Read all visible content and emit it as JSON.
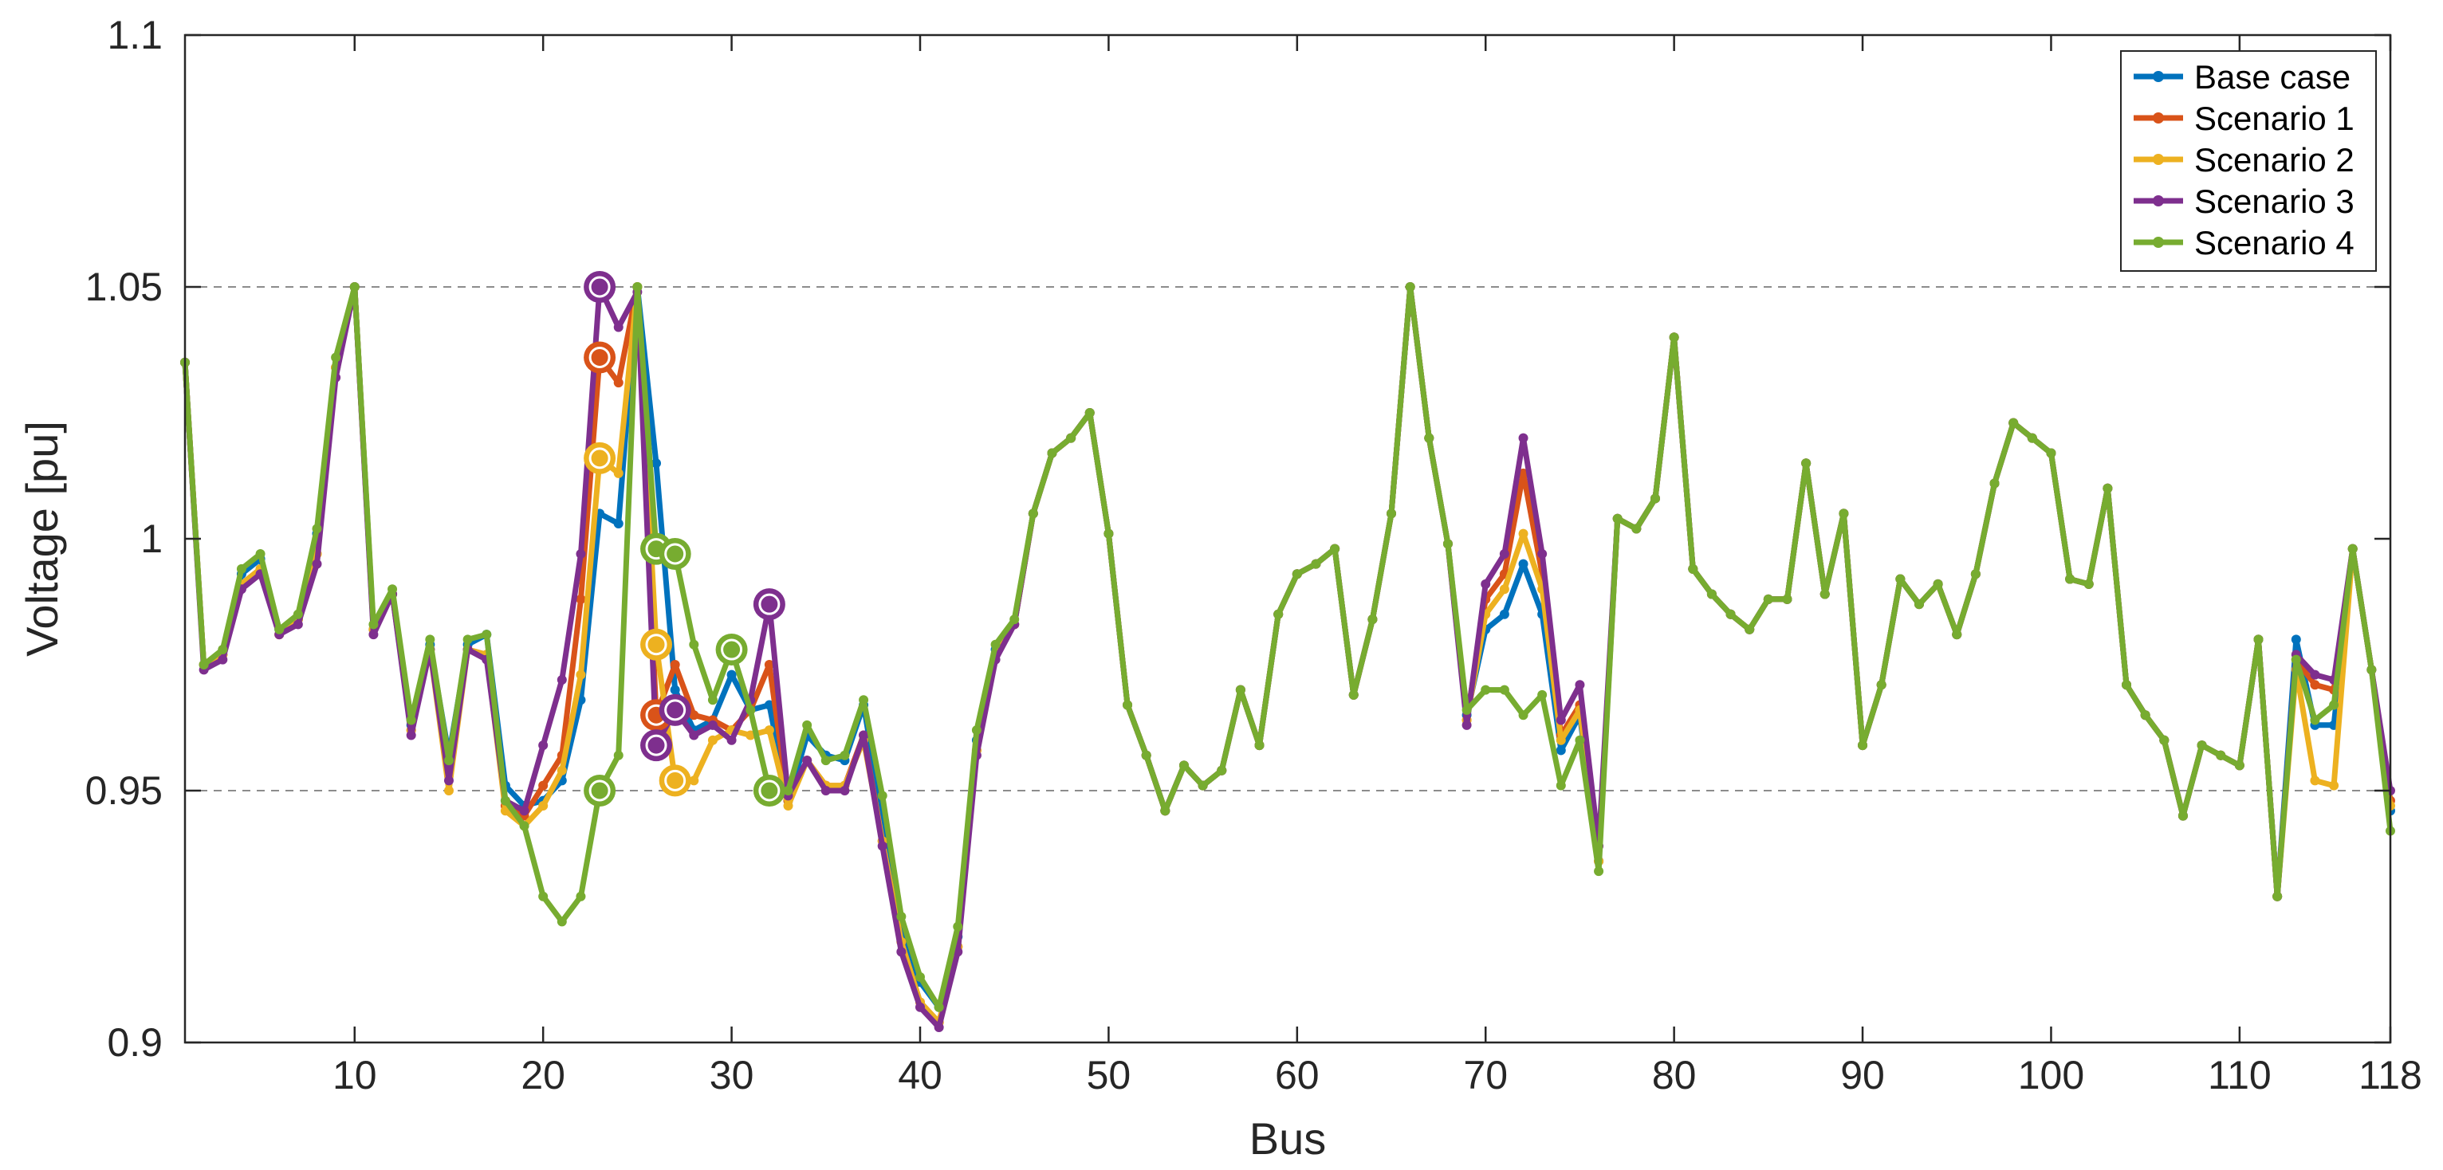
{
  "chart_data": {
    "type": "line",
    "xlabel": "Bus",
    "ylabel": "Voltage [pu]",
    "xlim": [
      1,
      118
    ],
    "ylim": [
      0.9,
      1.1
    ],
    "xticks": [
      10,
      20,
      30,
      40,
      50,
      60,
      70,
      80,
      90,
      100,
      110,
      118
    ],
    "yticks": [
      0.9,
      0.95,
      1,
      1.05,
      1.1
    ],
    "ytick_labels": [
      "0.9",
      "0.95",
      "1",
      "1.05",
      "1.1"
    ],
    "grid": {
      "y_dashed_at": [
        0.95,
        1.05
      ]
    },
    "legend_position": "top-right",
    "x": [
      1,
      2,
      3,
      4,
      5,
      6,
      7,
      8,
      9,
      10,
      11,
      12,
      13,
      14,
      15,
      16,
      17,
      18,
      19,
      20,
      21,
      22,
      23,
      24,
      25,
      26,
      27,
      28,
      29,
      30,
      31,
      32,
      33,
      34,
      35,
      36,
      37,
      38,
      39,
      40,
      41,
      42,
      43,
      44,
      45,
      46,
      47,
      48,
      49,
      50,
      51,
      52,
      53,
      54,
      55,
      56,
      57,
      58,
      59,
      60,
      61,
      62,
      63,
      64,
      65,
      66,
      67,
      68,
      69,
      70,
      71,
      72,
      73,
      74,
      75,
      76,
      77,
      78,
      79,
      80,
      81,
      82,
      83,
      84,
      85,
      86,
      87,
      88,
      89,
      90,
      91,
      92,
      93,
      94,
      95,
      96,
      97,
      98,
      99,
      100,
      101,
      102,
      103,
      104,
      105,
      106,
      107,
      108,
      109,
      110,
      111,
      112,
      113,
      114,
      115,
      116,
      117,
      118
    ],
    "series": [
      {
        "name": "Base case",
        "color": "#0072BD",
        "values": [
          1.035,
          0.975,
          0.977,
          0.993,
          0.996,
          0.982,
          0.984,
          1.001,
          1.034,
          1.05,
          0.982,
          0.989,
          0.963,
          0.979,
          0.957,
          0.979,
          0.981,
          0.951,
          0.947,
          0.948,
          0.952,
          0.968,
          1.005,
          1.003,
          1.05,
          1.015,
          0.97,
          0.962,
          0.964,
          0.973,
          0.966,
          0.967,
          0.948,
          0.961,
          0.957,
          0.956,
          0.967,
          0.945,
          0.922,
          0.912,
          0.907,
          0.921,
          0.96,
          0.978,
          0.983,
          1.005,
          1.017,
          1.02,
          1.025,
          1.001,
          0.967,
          0.957,
          0.946,
          0.955,
          0.951,
          0.954,
          0.97,
          0.959,
          0.985,
          0.993,
          0.995,
          0.998,
          0.969,
          0.984,
          1.005,
          1.05,
          1.02,
          0.999,
          0.965,
          0.982,
          0.985,
          0.995,
          0.985,
          0.958,
          0.965,
          0.936,
          1.004,
          1.002,
          1.008,
          1.04,
          0.994,
          0.989,
          0.985,
          0.982,
          0.988,
          0.988,
          1.015,
          0.989,
          1.005,
          0.959,
          0.971,
          0.992,
          0.987,
          0.991,
          0.981,
          0.993,
          1.011,
          1.023,
          1.02,
          1.017,
          0.992,
          0.991,
          1.01,
          0.971,
          0.965,
          0.96,
          0.945,
          0.959,
          0.957,
          0.955,
          0.98,
          0.929,
          0.98,
          0.963,
          0.963,
          0.998,
          0.974,
          0.946
        ]
      },
      {
        "name": "Scenario 1",
        "color": "#D95319",
        "values": [
          1.035,
          0.975,
          0.977,
          0.991,
          0.994,
          0.981,
          0.984,
          0.997,
          1.034,
          1.05,
          0.982,
          0.989,
          0.962,
          0.978,
          0.953,
          0.978,
          0.977,
          0.947,
          0.945,
          0.951,
          0.957,
          0.988,
          1.036,
          1.031,
          1.05,
          0.965,
          0.975,
          0.965,
          0.964,
          0.962,
          0.966,
          0.975,
          0.948,
          0.956,
          0.951,
          0.951,
          0.961,
          0.94,
          0.92,
          0.908,
          0.904,
          0.919,
          0.958,
          0.977,
          0.983,
          1.005,
          1.017,
          1.02,
          1.025,
          1.001,
          0.967,
          0.957,
          0.946,
          0.955,
          0.951,
          0.954,
          0.97,
          0.959,
          0.985,
          0.993,
          0.995,
          0.998,
          0.969,
          0.984,
          1.005,
          1.05,
          1.02,
          0.999,
          0.964,
          0.988,
          0.993,
          1.013,
          0.993,
          0.961,
          0.967,
          0.936,
          1.004,
          1.002,
          1.008,
          1.04,
          0.994,
          0.989,
          0.985,
          0.982,
          0.988,
          0.988,
          1.015,
          0.989,
          1.005,
          0.959,
          0.971,
          0.992,
          0.987,
          0.991,
          0.981,
          0.993,
          1.011,
          1.023,
          1.02,
          1.017,
          0.992,
          0.991,
          1.01,
          0.971,
          0.965,
          0.96,
          0.945,
          0.959,
          0.957,
          0.955,
          0.98,
          0.929,
          0.976,
          0.971,
          0.97,
          0.998,
          0.974,
          0.948
        ]
      },
      {
        "name": "Scenario 2",
        "color": "#EDB120",
        "values": [
          1.035,
          0.975,
          0.977,
          0.991,
          0.994,
          0.981,
          0.984,
          0.997,
          1.034,
          1.05,
          0.982,
          0.989,
          0.962,
          0.978,
          0.95,
          0.978,
          0.977,
          0.946,
          0.943,
          0.947,
          0.954,
          0.973,
          1.016,
          1.013,
          1.05,
          0.979,
          0.952,
          0.952,
          0.96,
          0.962,
          0.961,
          0.962,
          0.947,
          0.956,
          0.951,
          0.951,
          0.96,
          0.94,
          0.92,
          0.908,
          0.904,
          0.919,
          0.958,
          0.977,
          0.983,
          1.005,
          1.017,
          1.02,
          1.025,
          1.001,
          0.967,
          0.957,
          0.946,
          0.955,
          0.951,
          0.954,
          0.97,
          0.959,
          0.985,
          0.993,
          0.995,
          0.998,
          0.969,
          0.984,
          1.005,
          1.05,
          1.02,
          0.999,
          0.964,
          0.985,
          0.99,
          1.001,
          0.99,
          0.96,
          0.966,
          0.936,
          1.004,
          1.002,
          1.008,
          1.04,
          0.994,
          0.989,
          0.985,
          0.982,
          0.988,
          0.988,
          1.015,
          0.989,
          1.005,
          0.959,
          0.971,
          0.992,
          0.987,
          0.991,
          0.981,
          0.993,
          1.011,
          1.023,
          1.02,
          1.017,
          0.992,
          0.991,
          1.01,
          0.971,
          0.965,
          0.96,
          0.945,
          0.959,
          0.957,
          0.955,
          0.98,
          0.929,
          0.974,
          0.952,
          0.951,
          0.998,
          0.974,
          0.947
        ]
      },
      {
        "name": "Scenario 3",
        "color": "#7E2F8E",
        "values": [
          1.035,
          0.974,
          0.976,
          0.99,
          0.993,
          0.981,
          0.983,
          0.995,
          1.032,
          1.05,
          0.981,
          0.989,
          0.961,
          0.978,
          0.952,
          0.978,
          0.976,
          0.948,
          0.946,
          0.959,
          0.972,
          0.997,
          1.05,
          1.042,
          1.049,
          0.959,
          0.966,
          0.961,
          0.963,
          0.96,
          0.968,
          0.987,
          0.949,
          0.956,
          0.95,
          0.95,
          0.961,
          0.939,
          0.918,
          0.907,
          0.903,
          0.918,
          0.957,
          0.976,
          0.983,
          1.005,
          1.017,
          1.02,
          1.025,
          1.001,
          0.967,
          0.957,
          0.946,
          0.955,
          0.951,
          0.954,
          0.97,
          0.959,
          0.985,
          0.993,
          0.995,
          0.998,
          0.969,
          0.984,
          1.005,
          1.05,
          1.02,
          0.999,
          0.963,
          0.991,
          0.997,
          1.02,
          0.997,
          0.964,
          0.971,
          0.939,
          1.004,
          1.002,
          1.008,
          1.04,
          0.994,
          0.989,
          0.985,
          0.982,
          0.988,
          0.988,
          1.015,
          0.989,
          1.005,
          0.959,
          0.971,
          0.992,
          0.987,
          0.991,
          0.981,
          0.993,
          1.011,
          1.023,
          1.02,
          1.017,
          0.992,
          0.991,
          1.01,
          0.971,
          0.965,
          0.96,
          0.945,
          0.959,
          0.957,
          0.955,
          0.98,
          0.929,
          0.977,
          0.973,
          0.972,
          0.998,
          0.974,
          0.95
        ]
      },
      {
        "name": "Scenario 4",
        "color": "#77AC30",
        "values": [
          1.035,
          0.975,
          0.978,
          0.994,
          0.997,
          0.982,
          0.985,
          1.002,
          1.036,
          1.05,
          0.983,
          0.99,
          0.964,
          0.98,
          0.956,
          0.98,
          0.981,
          0.948,
          0.943,
          0.929,
          0.924,
          0.929,
          0.95,
          0.957,
          1.05,
          0.998,
          0.997,
          0.979,
          0.968,
          0.978,
          0.966,
          0.95,
          0.95,
          0.963,
          0.956,
          0.957,
          0.968,
          0.949,
          0.925,
          0.913,
          0.907,
          0.923,
          0.962,
          0.979,
          0.984,
          1.005,
          1.017,
          1.02,
          1.025,
          1.001,
          0.967,
          0.957,
          0.946,
          0.955,
          0.951,
          0.954,
          0.97,
          0.959,
          0.985,
          0.993,
          0.995,
          0.998,
          0.969,
          0.984,
          1.005,
          1.05,
          1.02,
          0.999,
          0.966,
          0.97,
          0.97,
          0.965,
          0.969,
          0.951,
          0.96,
          0.934,
          1.004,
          1.002,
          1.008,
          1.04,
          0.994,
          0.989,
          0.985,
          0.982,
          0.988,
          0.988,
          1.015,
          0.989,
          1.005,
          0.959,
          0.971,
          0.992,
          0.987,
          0.991,
          0.981,
          0.993,
          1.011,
          1.023,
          1.02,
          1.017,
          0.992,
          0.991,
          1.01,
          0.971,
          0.965,
          0.96,
          0.945,
          0.959,
          0.957,
          0.955,
          0.98,
          0.929,
          0.976,
          0.964,
          0.967,
          0.998,
          0.974,
          0.942
        ]
      }
    ],
    "highlighted_points": [
      {
        "series": "Scenario 1",
        "x": 23,
        "y": 1.036
      },
      {
        "series": "Scenario 1",
        "x": 26,
        "y": 0.965
      },
      {
        "series": "Scenario 2",
        "x": 23,
        "y": 1.016
      },
      {
        "series": "Scenario 2",
        "x": 26,
        "y": 0.979
      },
      {
        "series": "Scenario 2",
        "x": 27,
        "y": 0.952
      },
      {
        "series": "Scenario 3",
        "x": 23,
        "y": 1.05
      },
      {
        "series": "Scenario 3",
        "x": 26,
        "y": 0.959
      },
      {
        "series": "Scenario 3",
        "x": 27,
        "y": 0.966
      },
      {
        "series": "Scenario 3",
        "x": 32,
        "y": 0.987
      },
      {
        "series": "Scenario 4",
        "x": 23,
        "y": 0.95
      },
      {
        "series": "Scenario 4",
        "x": 26,
        "y": 0.998
      },
      {
        "series": "Scenario 4",
        "x": 27,
        "y": 0.997
      },
      {
        "series": "Scenario 4",
        "x": 30,
        "y": 0.978
      },
      {
        "series": "Scenario 4",
        "x": 32,
        "y": 0.95
      }
    ]
  }
}
